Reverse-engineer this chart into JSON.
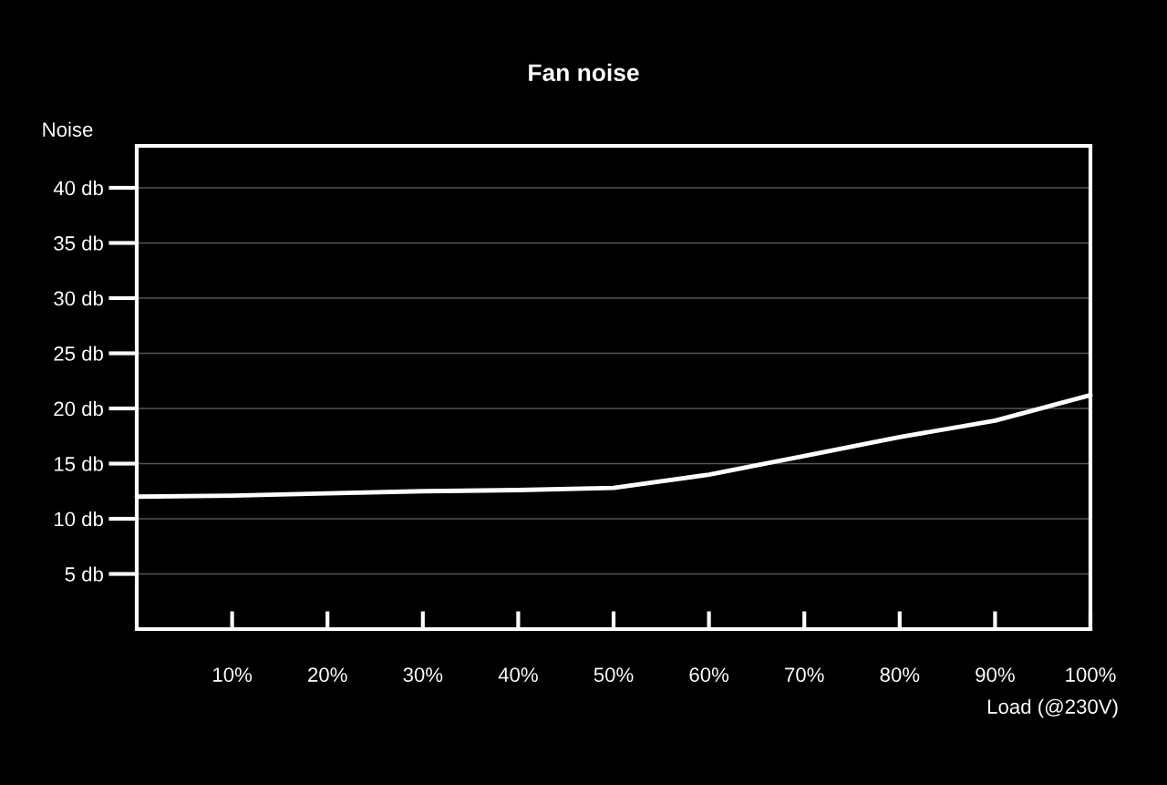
{
  "chart_data": {
    "type": "line",
    "title": "Fan noise",
    "xlabel": "Load (@230V)",
    "ylabel": "Noise",
    "x": [
      0,
      10,
      20,
      30,
      40,
      50,
      60,
      70,
      80,
      90,
      100
    ],
    "series": [
      {
        "color": "#ffffff",
        "values": [
          12.0,
          12.1,
          12.3,
          12.5,
          12.6,
          12.8,
          14.0,
          15.7,
          17.4,
          18.9,
          21.2
        ]
      }
    ],
    "xlim": [
      0,
      100
    ],
    "ylim": [
      0,
      43.8
    ],
    "xticks": [
      {
        "value": 10,
        "label": "10%"
      },
      {
        "value": 20,
        "label": "20%"
      },
      {
        "value": 30,
        "label": "30%"
      },
      {
        "value": 40,
        "label": "40%"
      },
      {
        "value": 50,
        "label": "50%"
      },
      {
        "value": 60,
        "label": "60%"
      },
      {
        "value": 70,
        "label": "70%"
      },
      {
        "value": 80,
        "label": "80%"
      },
      {
        "value": 90,
        "label": "90%"
      },
      {
        "value": 100,
        "label": "100%"
      }
    ],
    "yticks": [
      {
        "value": 5,
        "label": "5 db"
      },
      {
        "value": 10,
        "label": "10 db"
      },
      {
        "value": 15,
        "label": "15 db"
      },
      {
        "value": 20,
        "label": "20 db"
      },
      {
        "value": 25,
        "label": "25 db"
      },
      {
        "value": 30,
        "label": "30 db"
      },
      {
        "value": 35,
        "label": "35 db"
      },
      {
        "value": 40,
        "label": "40 db"
      }
    ],
    "grid": "y",
    "line_style": "solid",
    "marker": "none"
  }
}
